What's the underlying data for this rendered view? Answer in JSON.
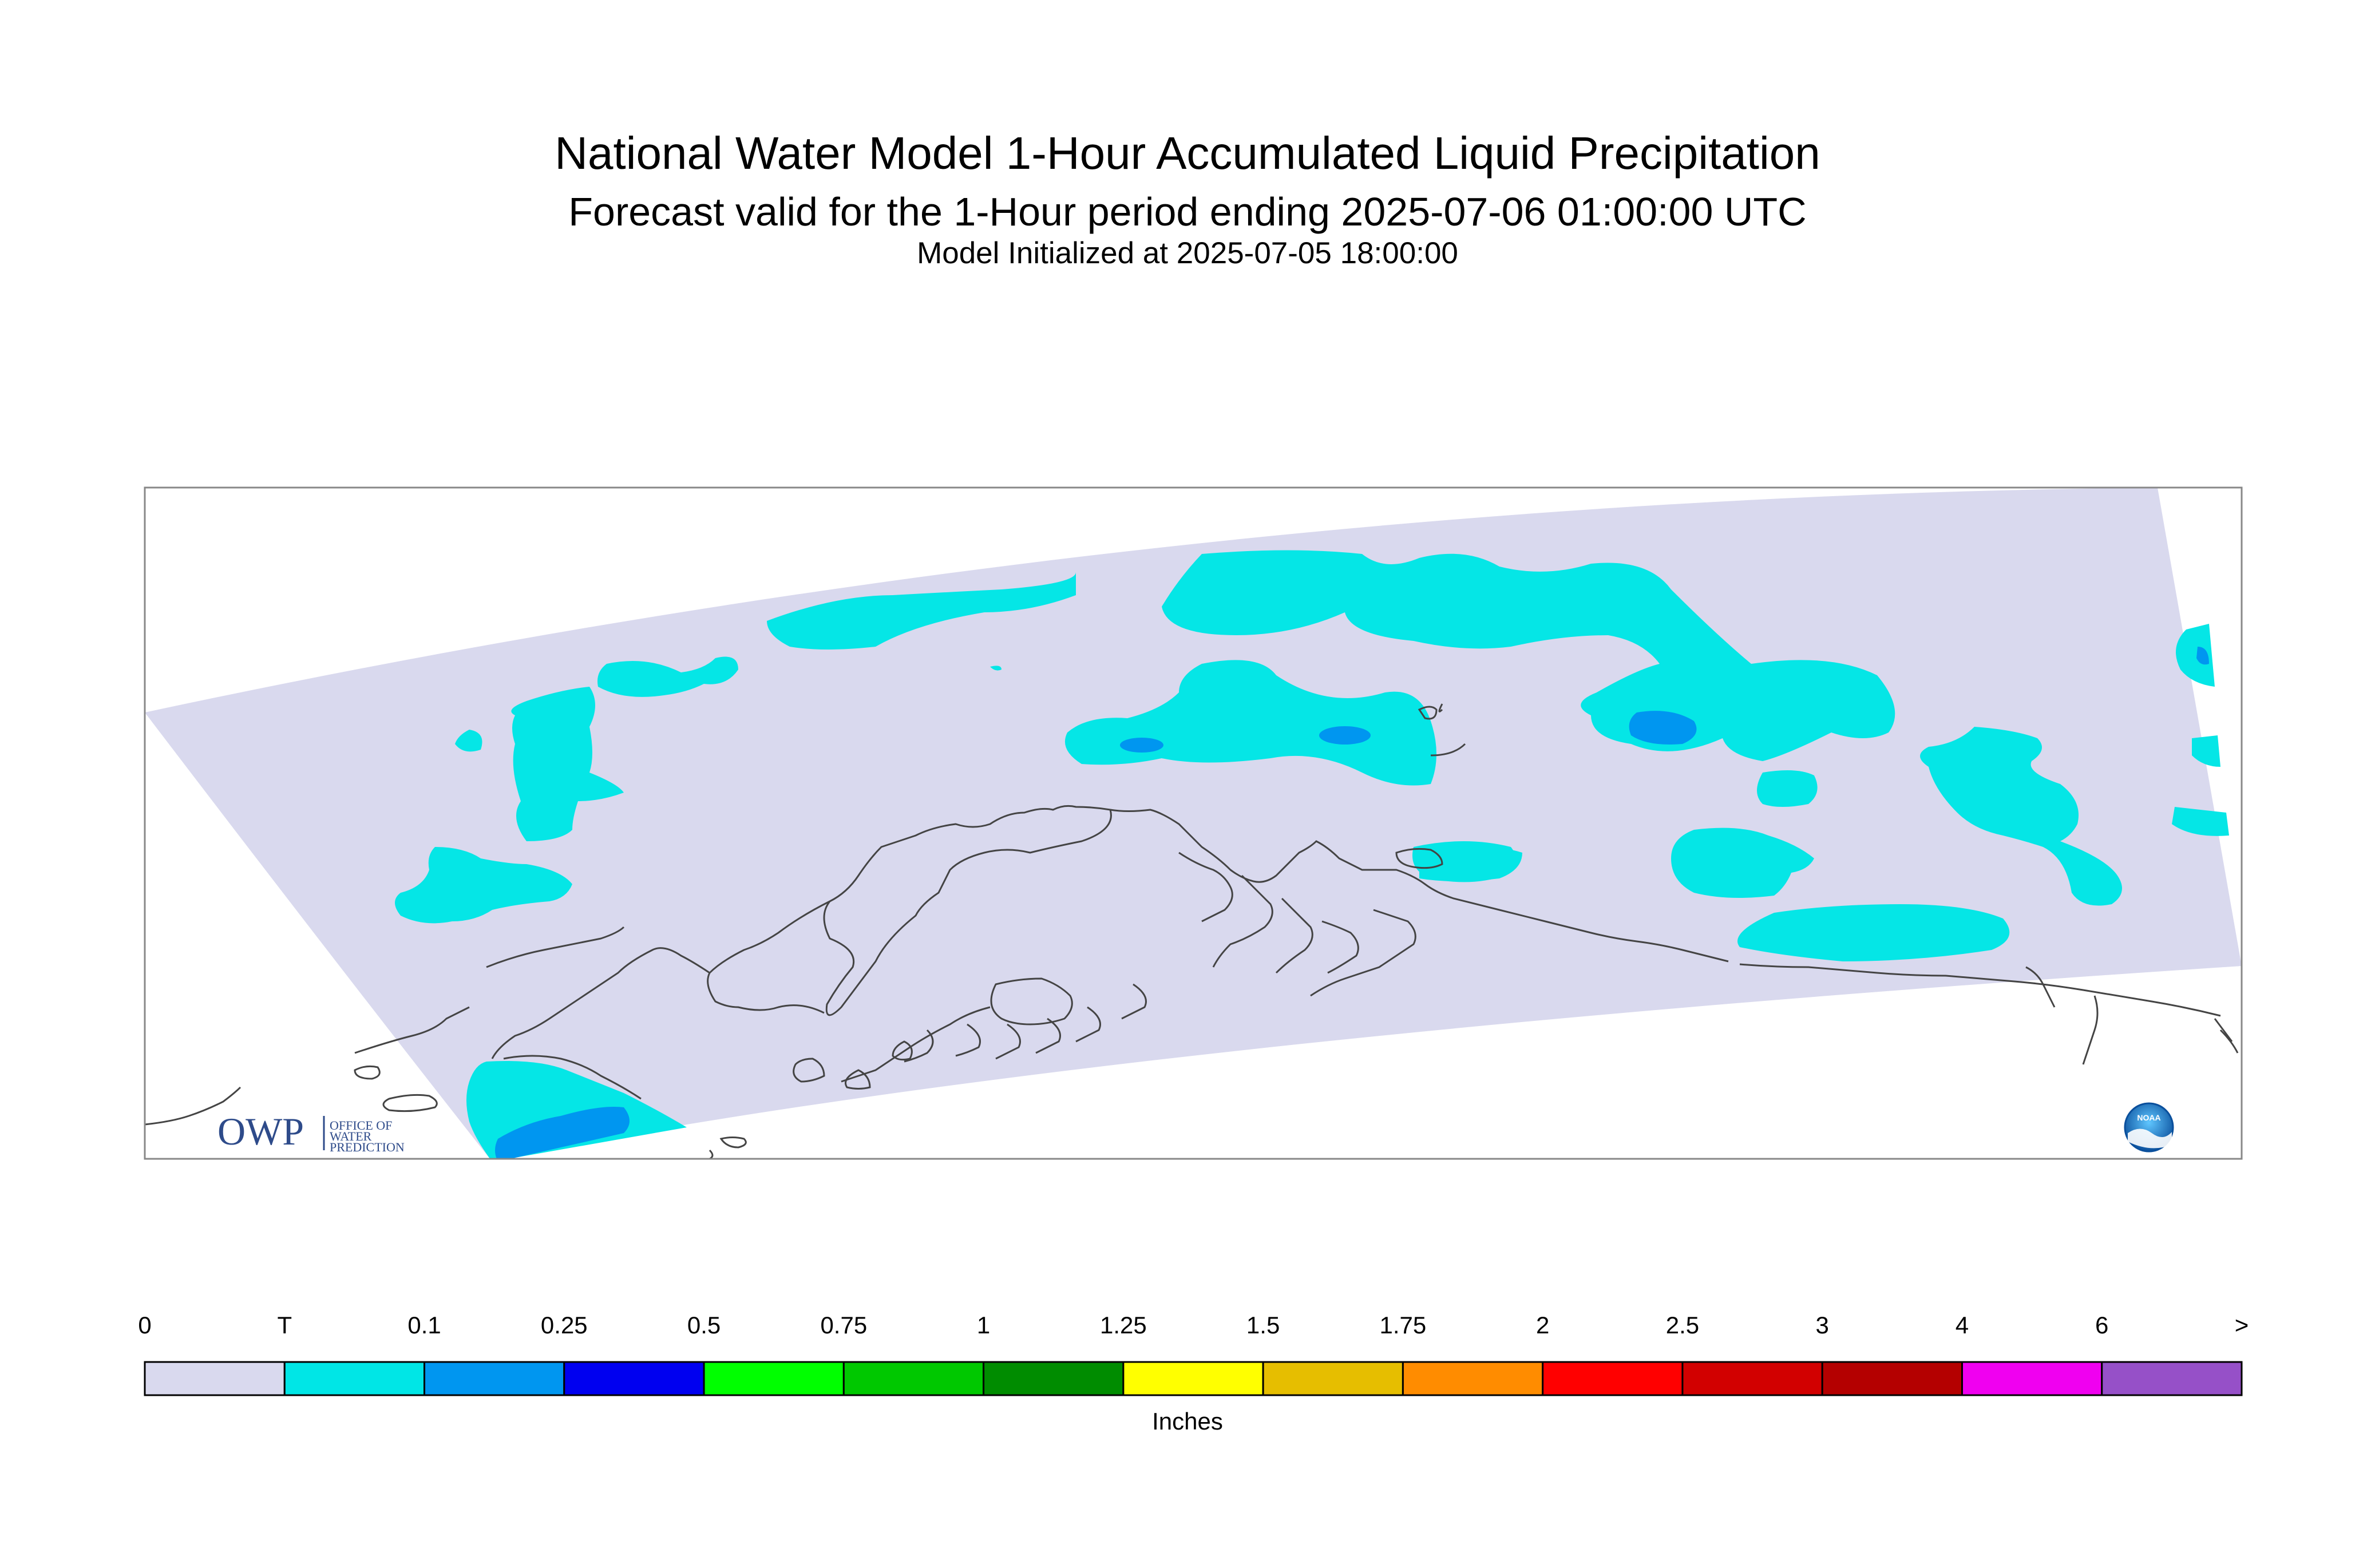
{
  "header": {
    "title": "National Water Model 1-Hour Accumulated Liquid Precipitation",
    "subtitle": "Forecast valid for the 1-Hour period ending 2025-07-06 01:00:00 UTC",
    "init": "Model Initialized at 2025-07-05 18:00:00"
  },
  "logos": {
    "owp_text": "OWP",
    "owp_lines": [
      "OFFICE OF",
      "WATER",
      "PREDICTION"
    ],
    "noaa_text": "NOAA"
  },
  "legend": {
    "units": "Inches",
    "labels": [
      "0",
      "T",
      "0.1",
      "0.25",
      "0.5",
      "0.75",
      "1",
      "1.25",
      "1.5",
      "1.75",
      "2",
      "2.5",
      "3",
      "4",
      "6",
      ">"
    ],
    "colors": [
      "#d9d9ee",
      "#00e6e6",
      "#0096f0",
      "#0000f0",
      "#00ff00",
      "#00c800",
      "#008c00",
      "#ffff00",
      "#e6be00",
      "#ff8c00",
      "#ff0000",
      "#d20000",
      "#b40000",
      "#f000f0",
      "#9650c8"
    ]
  },
  "map_colors": {
    "domain": "#d9d9ee",
    "trace": "#05e6e6",
    "light": "#0096f0",
    "coast": "#444444",
    "frame": "#888888"
  }
}
